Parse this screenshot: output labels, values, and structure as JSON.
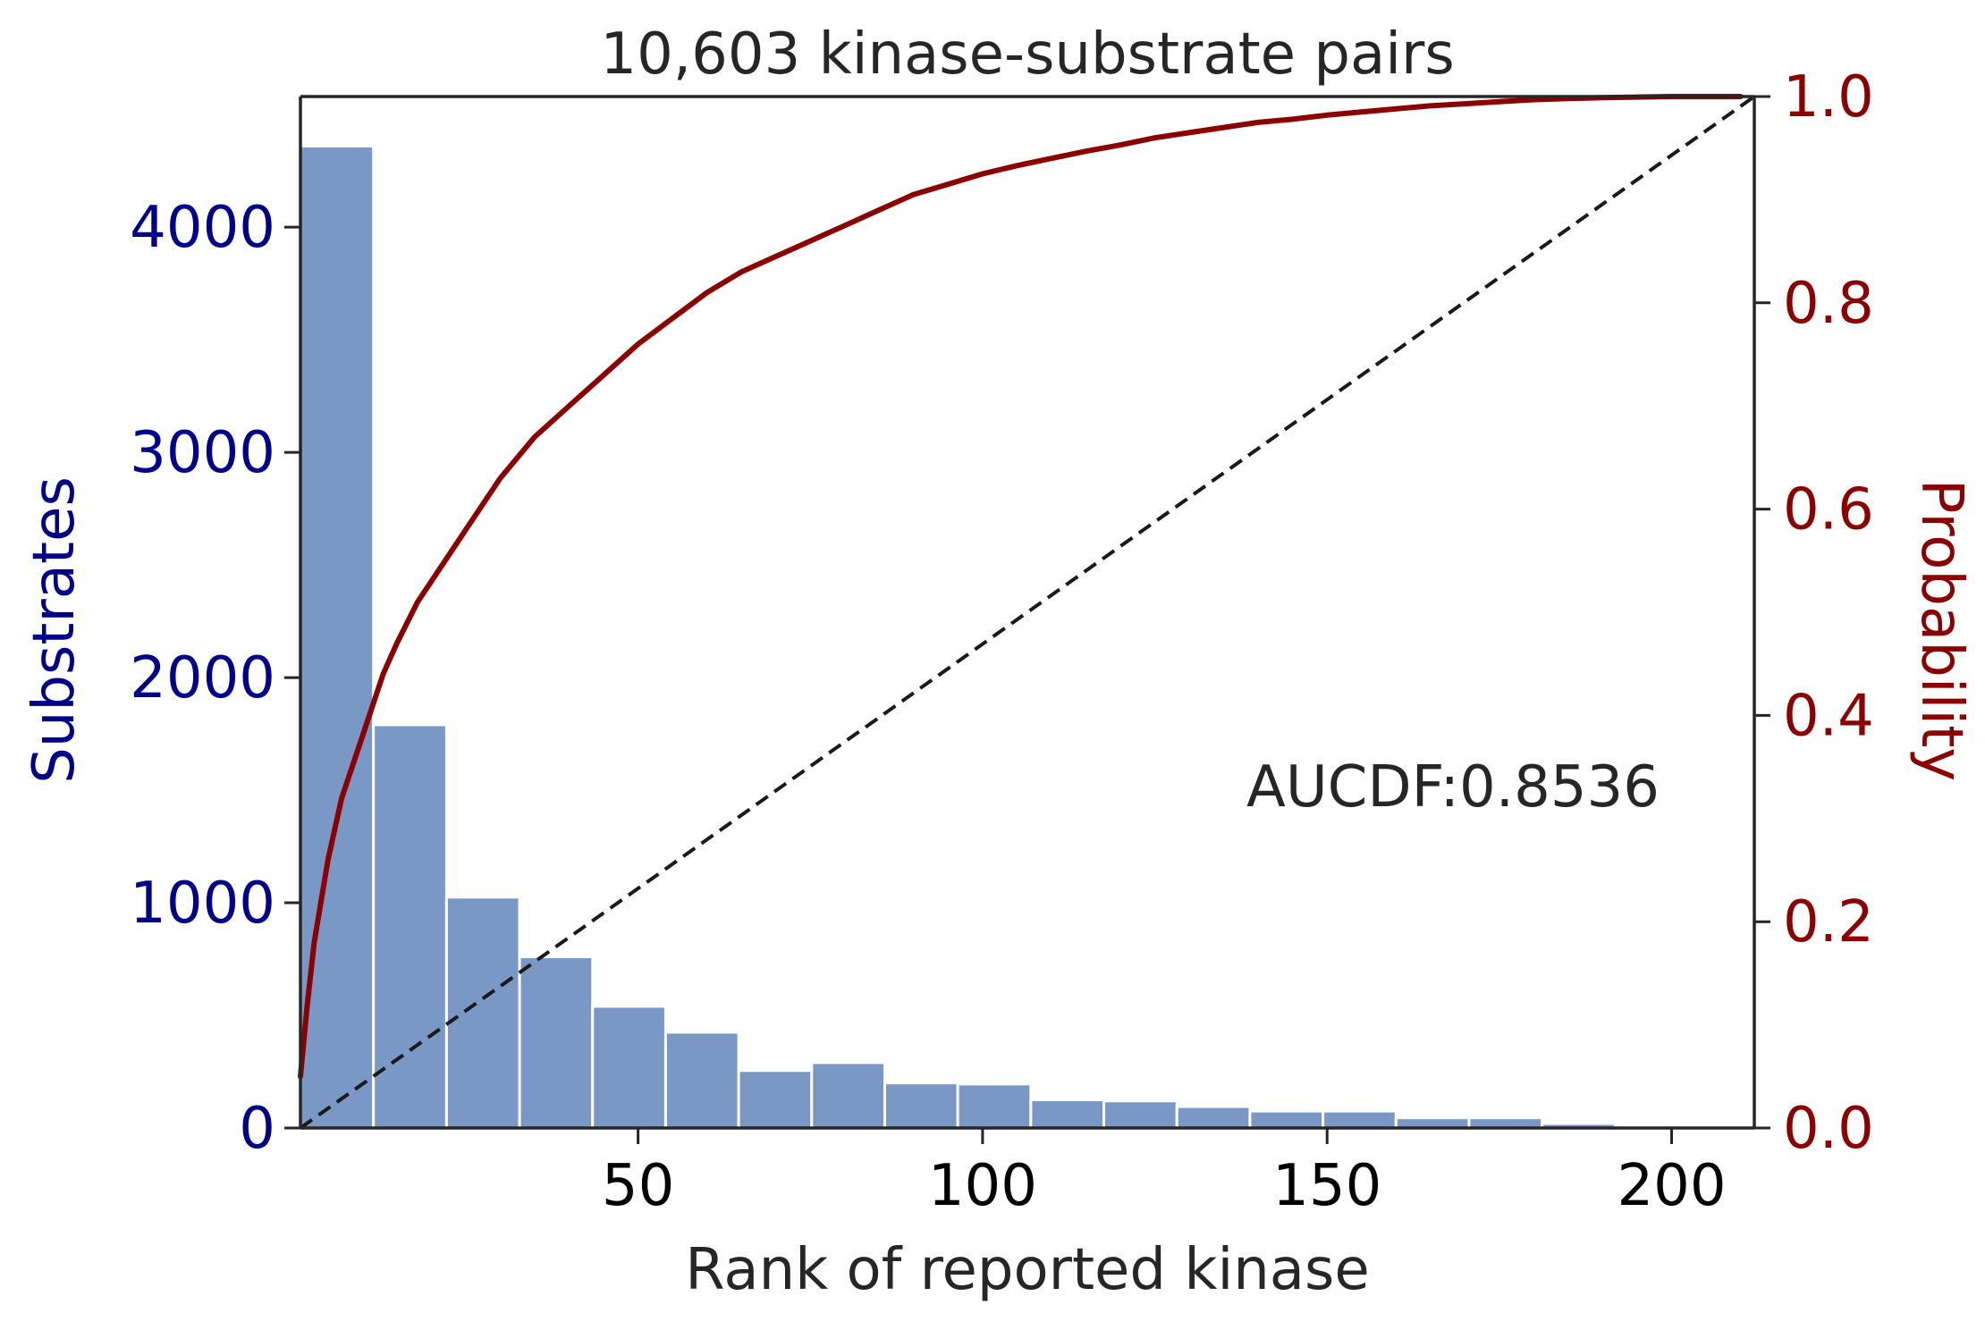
{
  "chart_data": {
    "type": "bar",
    "title": "10,603 kinase-substrate pairs",
    "xlabel": "Rank of reported kinase",
    "ylabel_left": "Substrates",
    "ylabel_right": "Probability",
    "annotation": "AUCDF:0.8536",
    "xlim": [
      1,
      212
    ],
    "x_ticks": [
      50,
      100,
      150,
      200
    ],
    "ylim_left": [
      0,
      4580
    ],
    "y_ticks_left": [
      0,
      1000,
      2000,
      3000,
      4000
    ],
    "ylim_right": [
      0,
      1.0
    ],
    "y_ticks_right": [
      "0.0",
      "0.2",
      "0.4",
      "0.6",
      "0.8",
      "1.0"
    ],
    "histogram": {
      "bin_edges": [
        1,
        11.6,
        22.2,
        32.8,
        43.4,
        54,
        64.6,
        75.2,
        85.8,
        96.4,
        107,
        117.6,
        128.2,
        138.8,
        149.4,
        160,
        170.6,
        181.2,
        191.8,
        202.4
      ],
      "values": [
        4360,
        1790,
        1025,
        760,
        540,
        425,
        255,
        290,
        200,
        195,
        125,
        120,
        95,
        75,
        75,
        45,
        45,
        20,
        10
      ]
    },
    "cdf_series": {
      "name": "CDF",
      "x": [
        1,
        2,
        3,
        5,
        7,
        10,
        13,
        15,
        18,
        20,
        25,
        30,
        35,
        40,
        45,
        50,
        55,
        60,
        65,
        70,
        75,
        80,
        85,
        90,
        95,
        100,
        105,
        110,
        115,
        120,
        125,
        130,
        135,
        140,
        145,
        150,
        155,
        160,
        165,
        170,
        175,
        180,
        185,
        190,
        195,
        200,
        205,
        210
      ],
      "y": [
        0.05,
        0.12,
        0.18,
        0.26,
        0.32,
        0.38,
        0.44,
        0.47,
        0.51,
        0.53,
        0.58,
        0.63,
        0.67,
        0.7,
        0.73,
        0.76,
        0.785,
        0.81,
        0.83,
        0.845,
        0.86,
        0.875,
        0.89,
        0.905,
        0.915,
        0.925,
        0.933,
        0.94,
        0.947,
        0.953,
        0.96,
        0.965,
        0.97,
        0.975,
        0.978,
        0.982,
        0.985,
        0.988,
        0.991,
        0.993,
        0.995,
        0.997,
        0.998,
        0.999,
        0.9995,
        1.0,
        1.0,
        1.0
      ]
    },
    "diagonal": {
      "style": "dashed",
      "from": [
        1,
        0.0
      ],
      "to": [
        212,
        1.0
      ]
    },
    "colors": {
      "bars": "#7a98c5",
      "cdf_line": "#8b0000",
      "left_axis": "#00008b",
      "right_axis": "#8b0000",
      "diagonal": "#1a1a1a",
      "spine": "#262626"
    }
  }
}
